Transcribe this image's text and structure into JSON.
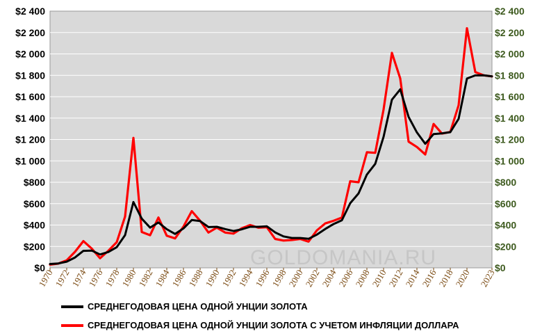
{
  "chart_data": {
    "type": "line",
    "title": "",
    "xlabel": "",
    "ylabel": "",
    "ylim": [
      0,
      2400
    ],
    "y_ticks": [
      "$0",
      "$200",
      "$400",
      "$600",
      "$800",
      "$1 000",
      "$1 200",
      "$1 400",
      "$1 600",
      "$1 800",
      "$2 000",
      "$2 200",
      "$2 400"
    ],
    "x_tick_labels": [
      "1970",
      "1972",
      "1974",
      "1976",
      "1978",
      "1980",
      "1982",
      "1984",
      "1986",
      "1988",
      "1990",
      "1992",
      "1994",
      "1996",
      "1998",
      "2000",
      "2002",
      "2004",
      "2006",
      "2008",
      "2010",
      "2012",
      "2014",
      "2016",
      "2018",
      "2020",
      "2023"
    ],
    "x": [
      1970,
      1971,
      1972,
      1973,
      1974,
      1975,
      1976,
      1977,
      1978,
      1979,
      1980,
      1981,
      1982,
      1983,
      1984,
      1985,
      1986,
      1987,
      1988,
      1989,
      1990,
      1991,
      1992,
      1993,
      1994,
      1995,
      1996,
      1997,
      1998,
      1999,
      2000,
      2001,
      2002,
      2003,
      2004,
      2005,
      2006,
      2007,
      2008,
      2009,
      2010,
      2011,
      2012,
      2013,
      2014,
      2015,
      2016,
      2017,
      2018,
      2019,
      2020,
      2021,
      2022,
      2023
    ],
    "grid": true,
    "legend_position": "bottom",
    "series": [
      {
        "name": "СРЕДНЕГОДОВАЯ ЦЕНА ОДНОЙ УНЦИИ ЗОЛОТА",
        "color": "#000000",
        "values": [
          36,
          41,
          58,
          97,
          159,
          161,
          125,
          148,
          193,
          306,
          615,
          460,
          376,
          424,
          361,
          317,
          368,
          447,
          437,
          381,
          384,
          362,
          344,
          360,
          384,
          384,
          388,
          331,
          294,
          279,
          279,
          271,
          310,
          363,
          409,
          445,
          604,
          696,
          872,
          972,
          1225,
          1572,
          1669,
          1411,
          1266,
          1160,
          1251,
          1257,
          1268,
          1393,
          1770,
          1799,
          1800,
          1790
        ]
      },
      {
        "name": "СРЕДНЕГОДОВАЯ ЦЕНА ОДНОЙ УНЦИИ ЗОЛОТА С УЧЕТОМ ИНФЛЯЦИИ ДОЛЛАРА",
        "color": "#ff0000",
        "values": [
          30,
          40,
          70,
          150,
          250,
          180,
          90,
          160,
          240,
          480,
          1215,
          335,
          305,
          470,
          300,
          275,
          385,
          530,
          440,
          330,
          375,
          330,
          320,
          370,
          400,
          375,
          380,
          270,
          255,
          260,
          270,
          245,
          350,
          415,
          440,
          470,
          810,
          800,
          1080,
          1075,
          1480,
          2010,
          1770,
          1180,
          1130,
          1060,
          1345,
          1255,
          1270,
          1520,
          2240,
          1830,
          1800,
          1790
        ]
      }
    ]
  },
  "watermark": "GOLDOMANIA.RU",
  "colors": {
    "plot_background": "#d9d9d9",
    "grid": "#ffffff",
    "right_axis_text": "#3d5a1e",
    "x_axis_text": "#7a4a12"
  }
}
